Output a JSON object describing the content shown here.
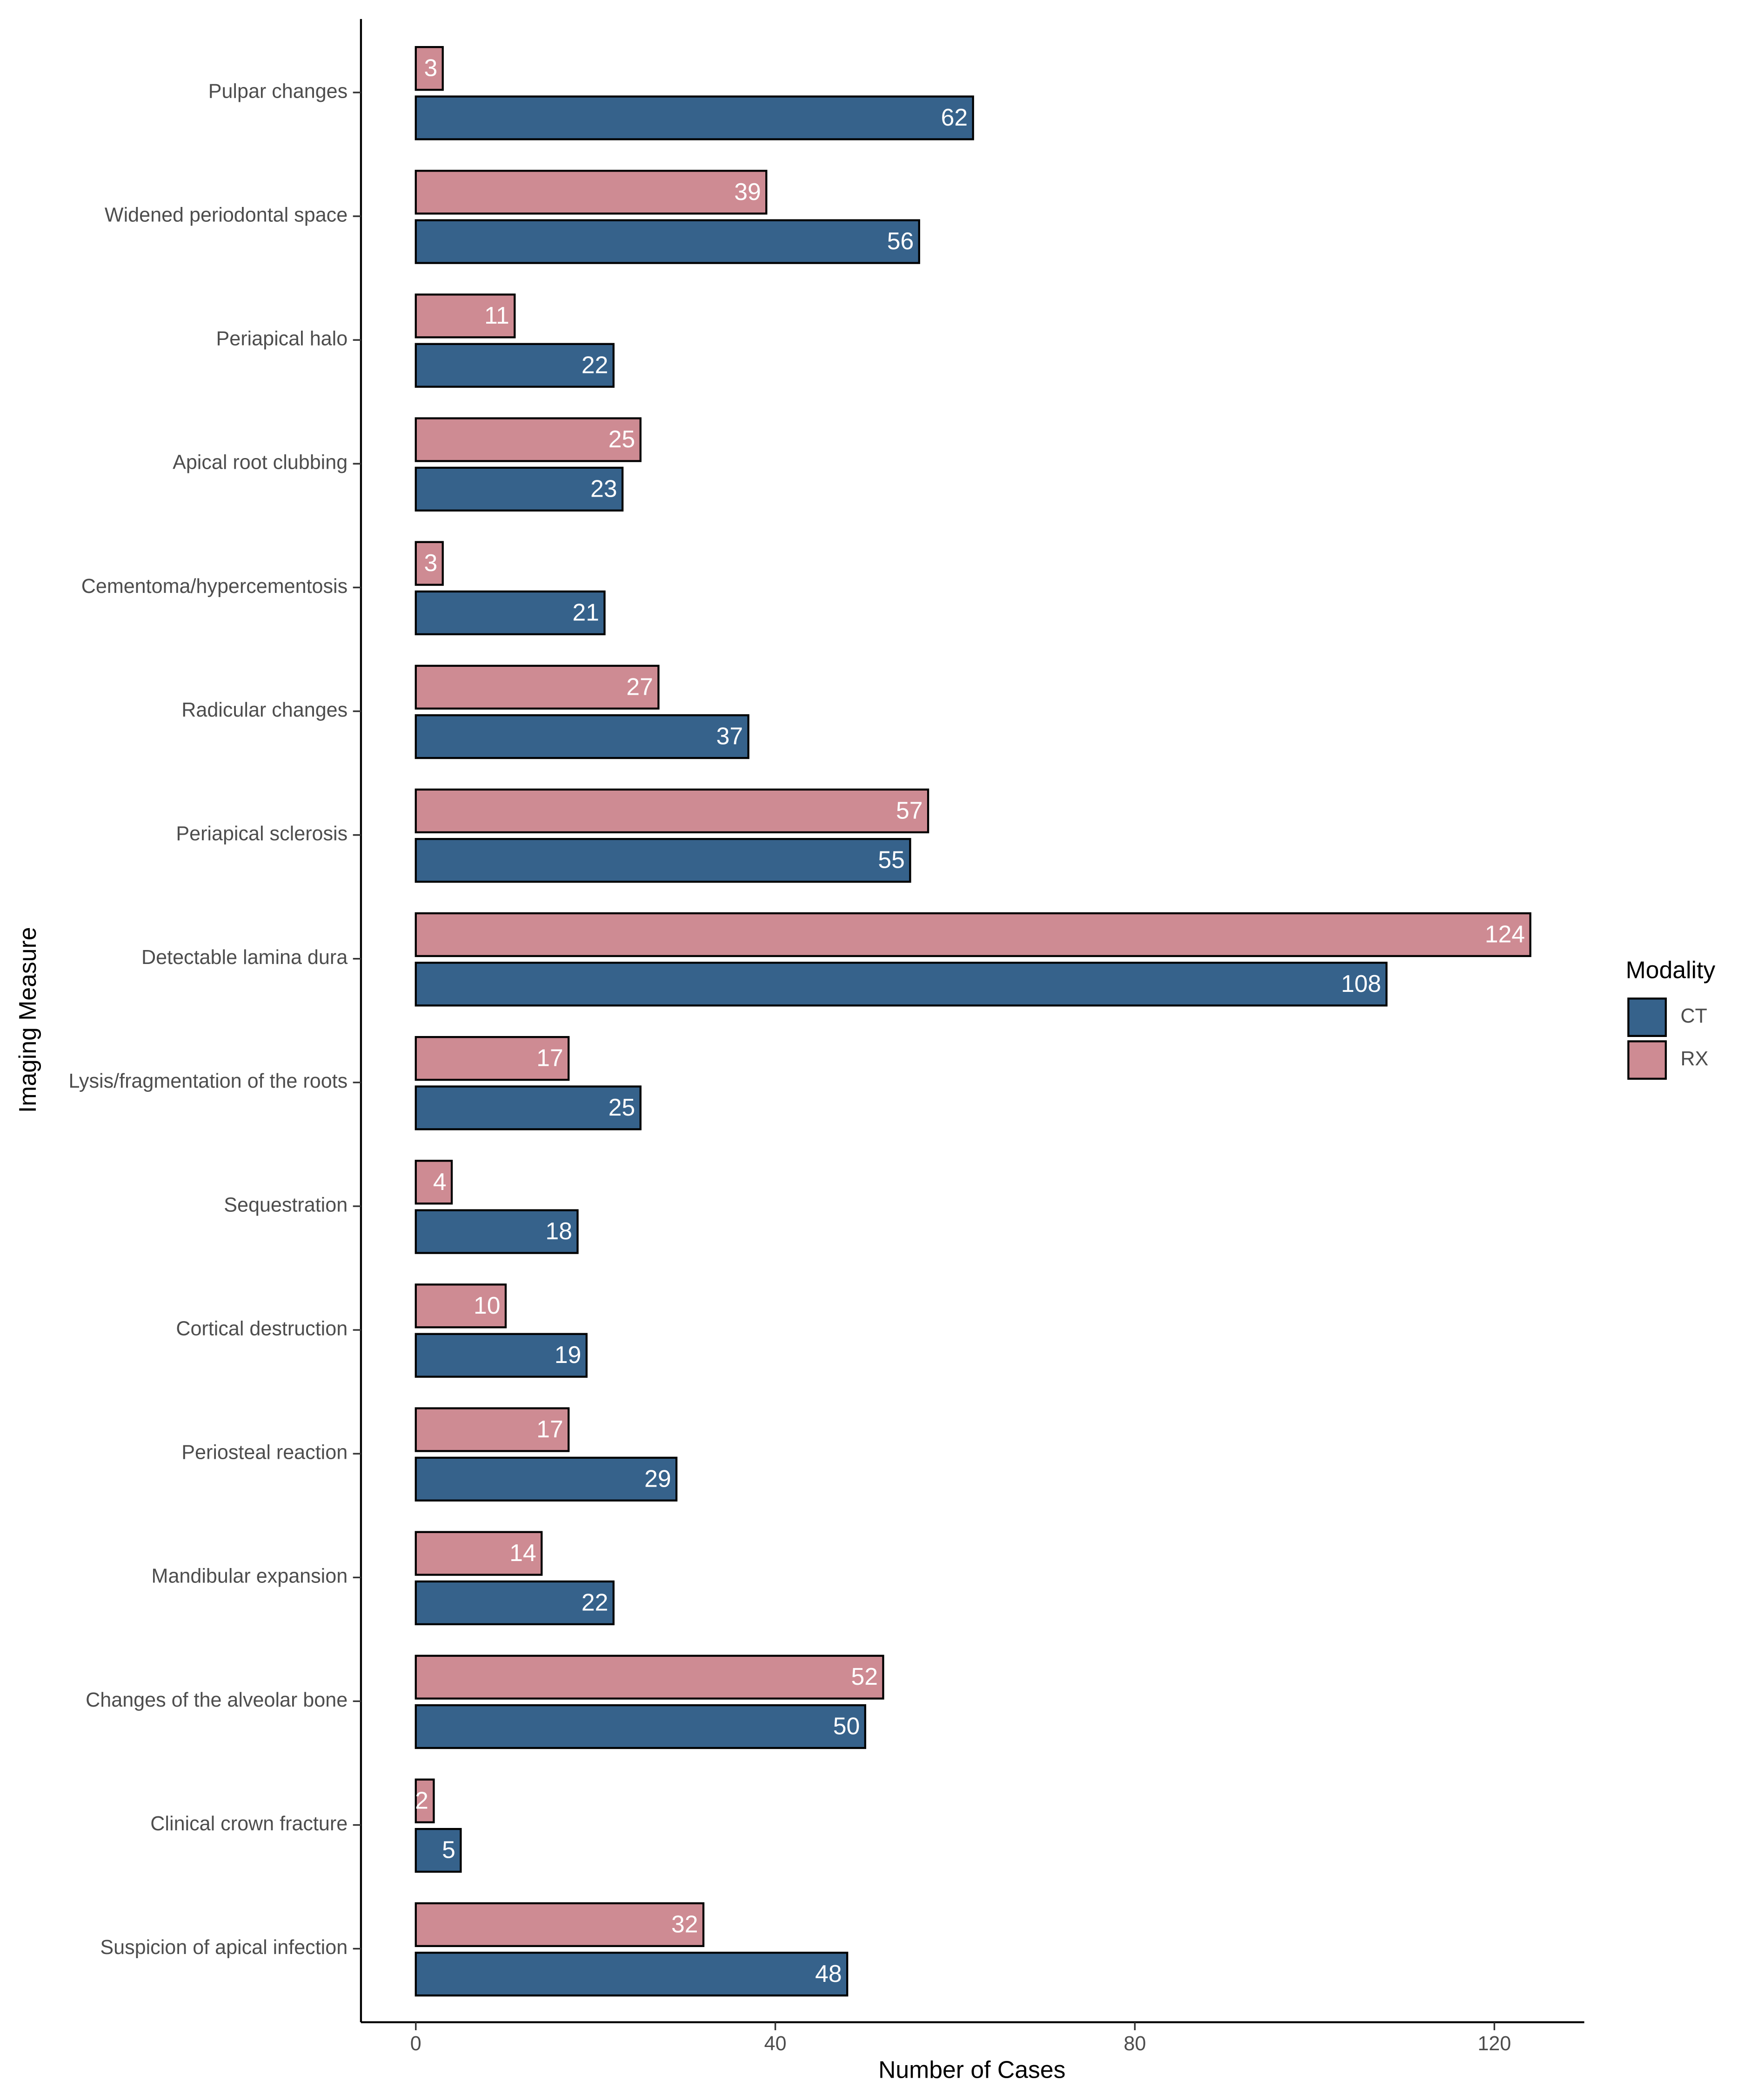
{
  "chart_data": {
    "type": "bar",
    "orientation": "horizontal",
    "categories": [
      "Pulpar changes",
      "Widened periodontal space",
      "Periapical halo",
      "Apical root clubbing",
      "Cementoma/hypercementosis",
      "Radicular changes",
      "Periapical sclerosis",
      "Detectable lamina dura",
      "Lysis/fragmentation of the roots",
      "Sequestration",
      "Cortical destruction",
      "Periosteal reaction",
      "Mandibular expansion",
      "Changes of the alveolar bone",
      "Clinical crown fracture",
      "Suspicion of apical infection"
    ],
    "series": [
      {
        "name": "CT",
        "color": "#36628b",
        "values": [
          62,
          56,
          22,
          23,
          21,
          37,
          55,
          108,
          25,
          18,
          19,
          29,
          22,
          50,
          5,
          48
        ]
      },
      {
        "name": "RX",
        "color": "#ce8b93",
        "values": [
          3,
          39,
          11,
          25,
          3,
          27,
          57,
          124,
          17,
          4,
          10,
          17,
          14,
          52,
          2,
          32
        ]
      }
    ],
    "x_label": "Number of Cases",
    "y_label": "Imaging Measure",
    "legend_title": "Modality",
    "legend_position": "right",
    "xlim": [
      -6.1,
      130
    ],
    "xticks": [
      0,
      40,
      80,
      120
    ]
  }
}
